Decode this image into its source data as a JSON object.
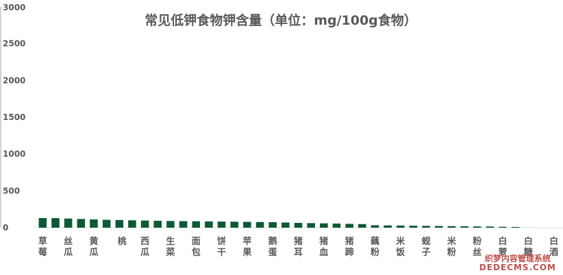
{
  "colors": {
    "bar": "#0b5a35",
    "bar_faint": "#d6e7dd",
    "text": "#595959"
  },
  "chart_data": {
    "type": "bar",
    "title": "常见低钾食物钾含量（单位：mg/100g食物）",
    "xlabel": "",
    "ylabel": "",
    "ylim": [
      0,
      3000
    ],
    "yticks": [
      0,
      500,
      1000,
      1500,
      2000,
      2500,
      3000
    ],
    "grid": false,
    "legend": "none",
    "categories": [
      "草莓",
      "",
      "丝瓜",
      "",
      "黄瓜",
      "",
      "桃",
      "",
      "西瓜",
      "",
      "生菜",
      "",
      "面包",
      "",
      "饼干",
      "",
      "苹果",
      "",
      "鹅蛋",
      "",
      "猪耳",
      "",
      "猪血",
      "",
      "猪蹄",
      "",
      "藕粉",
      "",
      "米饭",
      "",
      "蚬子",
      "",
      "米粉",
      "",
      "粉丝",
      "",
      "白萝",
      "",
      "白糖",
      "",
      "白酒"
    ],
    "values": [
      131,
      130,
      124,
      118,
      112,
      107,
      104,
      100,
      97,
      94,
      91,
      89,
      87,
      85,
      83,
      81,
      79,
      77,
      75,
      70,
      65,
      62,
      59,
      56,
      52,
      49,
      33,
      31,
      29,
      27,
      25,
      23,
      21,
      19,
      17,
      16,
      12,
      10,
      8,
      6,
      4
    ]
  },
  "watermark": {
    "cn": "织梦内容管理系统",
    "en": "DEDECMS.COM"
  }
}
